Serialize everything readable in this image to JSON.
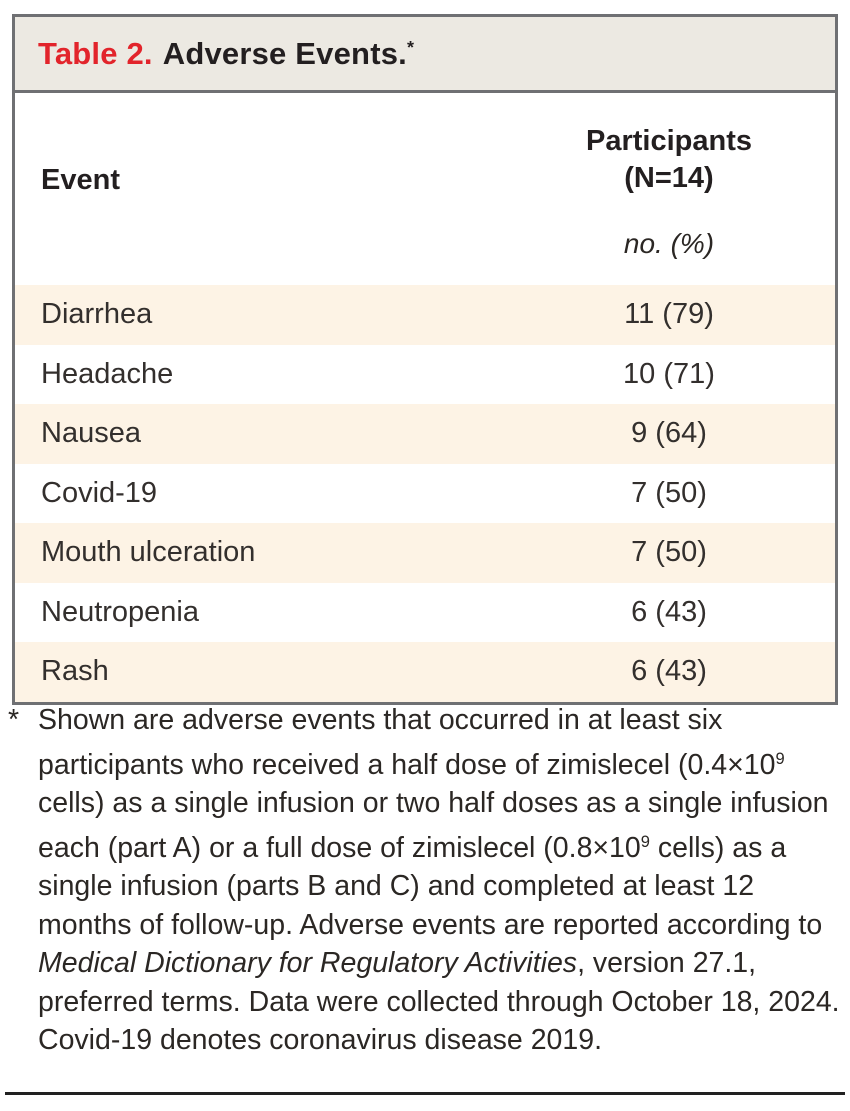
{
  "table": {
    "label": "Table 2.",
    "title": "Adverse Events.",
    "footnote_marker": "*",
    "columns": {
      "event": {
        "header": "Event"
      },
      "participants": {
        "header_line1": "Participants",
        "header_line2": "(N=14)",
        "unit": "no. (%)"
      }
    },
    "rows": [
      {
        "event": "Diarrhea",
        "value": "11 (79)"
      },
      {
        "event": "Headache",
        "value": "10 (71)"
      },
      {
        "event": "Nausea",
        "value": "9 (64)"
      },
      {
        "event": "Covid-19",
        "value": "7 (50)"
      },
      {
        "event": "Mouth ulceration",
        "value": "7 (50)"
      },
      {
        "event": "Neutropenia",
        "value": "6 (43)"
      },
      {
        "event": "Rash",
        "value": "6 (43)"
      }
    ]
  },
  "footnote": {
    "marker": "*",
    "text1": "Shown are adverse events that occurred in at least six participants who received a half dose of zimislecel (0.4×10",
    "sup1": "9",
    "text2": " cells) as a single infusion or two half doses as a single infusion each (part A) or a full dose of zimislecel (0.8×10",
    "sup2": "9",
    "text3": " cells) as a single infusion (parts B and C) and completed at least 12 months of follow-up. Adverse events are reported according to ",
    "italic1": "Medical Dictionary for Regulatory Activities",
    "text4": ", version 27.1, preferred terms. Data were collected through October 18, 2024. Covid-19 denotes coronavirus disease 2019."
  },
  "colors": {
    "accent_red": "#e2242b",
    "stripe_cream": "#fdf3e5",
    "title_band": "#ece9e2",
    "border_gray": "#6f7073",
    "text": "#2b2724",
    "bottom_rule": "#212121"
  }
}
